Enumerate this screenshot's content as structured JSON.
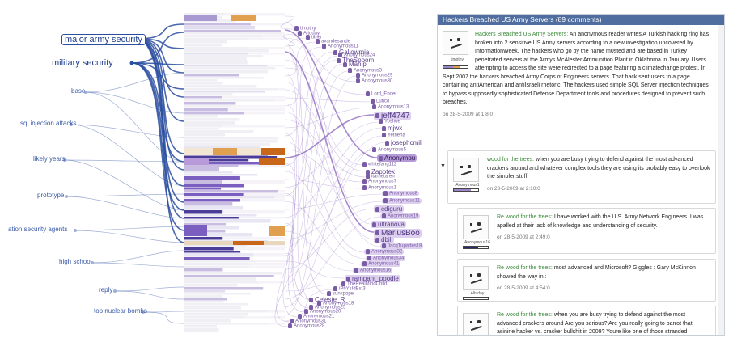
{
  "keywords": [
    {
      "label": "major army security"
    },
    {
      "label": "military security"
    },
    {
      "label": "base"
    },
    {
      "label": "sql injection attacks"
    },
    {
      "label": "likely years"
    },
    {
      "label": "prototype"
    },
    {
      "label": "ation security agents"
    },
    {
      "label": "high school"
    },
    {
      "label": "reply"
    },
    {
      "label": "top nuclear bombs"
    }
  ],
  "users": [
    {
      "label": "timothy"
    },
    {
      "label": "Altuday"
    },
    {
      "label": "tilner"
    },
    {
      "label": "avandesande"
    },
    {
      "label": "Anonymous11"
    },
    {
      "label": "Gallowmia"
    },
    {
      "label": "Anonymous24"
    },
    {
      "label": "TheSpoom"
    },
    {
      "label": "Manip"
    },
    {
      "label": "Anonymous3"
    },
    {
      "label": "Anonymous29"
    },
    {
      "label": "Anonymous30"
    },
    {
      "label": "Lord_Ender"
    },
    {
      "label": "Lunco"
    },
    {
      "label": "Anonymous13"
    },
    {
      "label": "jeff4747"
    },
    {
      "label": "Yoshoe"
    },
    {
      "label": "mjwx"
    },
    {
      "label": "Yetheha"
    },
    {
      "label": "josephcmili"
    },
    {
      "label": "Anonymous5"
    },
    {
      "label": "Anonymou"
    },
    {
      "label": "whitefang112"
    },
    {
      "label": "Zapotek"
    },
    {
      "label": "itarnetaren"
    },
    {
      "label": "Anonymous7"
    },
    {
      "label": "Anonymous1"
    },
    {
      "label": "Anonymous8"
    },
    {
      "label": "Anonymous11"
    },
    {
      "label": "cdiguru"
    },
    {
      "label": "Anonymous19"
    },
    {
      "label": "ultranova"
    },
    {
      "label": "MariusBoo"
    },
    {
      "label": "dbill"
    },
    {
      "label": "JacqTupades18"
    },
    {
      "label": "Anonymous32"
    },
    {
      "label": "Anonymous34"
    },
    {
      "label": "Anonymous41"
    },
    {
      "label": "Anonymous16"
    },
    {
      "label": "rampant_poodle"
    },
    {
      "label": "TheRealMindChild"
    },
    {
      "label": "iPhYsIdBst3"
    },
    {
      "label": "sunkpope"
    },
    {
      "label": "Celeste_R"
    },
    {
      "label": "Anonymous18"
    },
    {
      "label": "Anonymous25"
    },
    {
      "label": "Anonymous20"
    },
    {
      "label": "Anonymous21"
    },
    {
      "label": "Anonymous31"
    },
    {
      "label": "Anonymous28"
    }
  ],
  "panel": {
    "title": "Hackers Breached US Army Servers (89 comments)",
    "main_post": {
      "author": "timothy",
      "title": "Hackers Breached US Army Servers:",
      "text": " An anonymous reader writes A Turkish hacking ring has broken into 2 sensitive US Army servers according to a new investigation uncovered by InformationWeek. The hackers who go by the name m0sted and are based in Turkey penetrated servers at the Armys McAlester Ammunition Plant in Oklahoma in January. Users attempting to access the site were redirected to a page featuring a climatechange protest. In Sept 2007 the hackers breached Army Corps of Engineers servers. That hack sent users to a page containing antiAmerican and antiIsraeli rhetoric. The hackers used simple SQL Server injection techniques to bypass supposedly sophisticated Defense Department tools and procedures designed to prevent such breaches.",
      "date": "on 28-5-2009 at 1:8:0"
    },
    "replies": [
      {
        "author": "Anonymous1",
        "title": "wood for the trees:",
        "text": " when you are busy trying to defend against the most advanced crackers around and whatever complex tools they are using its probably easy to overlook the simpler stuff",
        "date": "on 28-5-2009 at 2:10:0"
      },
      {
        "author": "Anonymous16",
        "title": "Re wood for the trees:",
        "text": " I have worked with the U.S. Army Network Engineers. I was apalled at their lack of knowledge and understanding of security.",
        "date": "on 28-5-2009 at 2:49:0"
      },
      {
        "author": "Altuday",
        "title": "Re wood for the trees:",
        "text": " most advanced and Microsoft? Giggles : Gary McKinnon showed the way in :",
        "date": "on 28-5-2009 at 4:54:0"
      },
      {
        "author": "",
        "title": "Re wood for the trees:",
        "text": " when you are busy trying to defend against the most advanced crackers around Are you serious? Are you really going to parrot that asinine hacker vs. cracker bullshit in 2009? Youre like one of those stranded Japanese soldiers who thinks",
        "date": ""
      }
    ],
    "expand_glyph": "▼"
  },
  "colors": {
    "keyword_edge": "#2a4ea0",
    "user_edge": "#8e6cc0",
    "orange": "#e0a050",
    "dark_orange": "#c8661a",
    "purple": "#7a5ec0",
    "light_purple": "#c8bce0",
    "panel_header": "#4f6e9f"
  }
}
